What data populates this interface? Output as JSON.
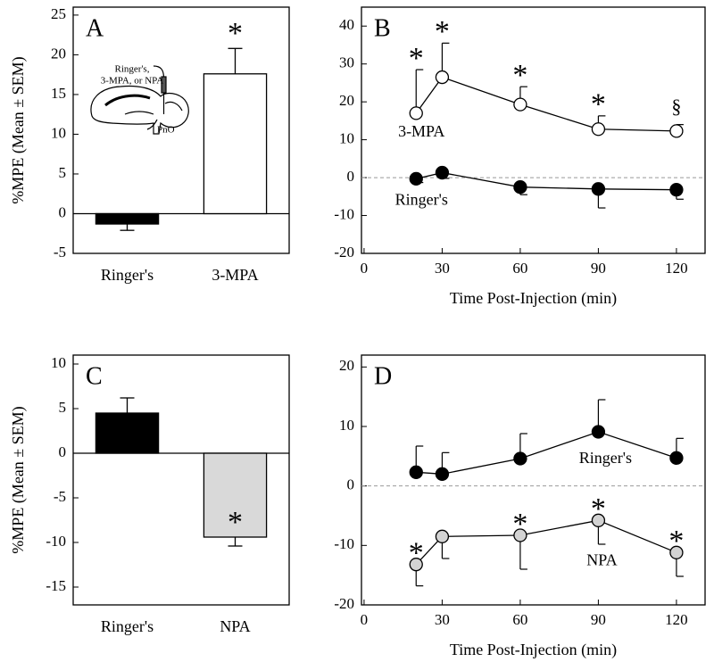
{
  "chart_data": [
    {
      "type": "bar",
      "title": "A",
      "y_label": "%MPE (Mean ± SEM)",
      "categories": [
        "Ringer's",
        "3-MPA"
      ],
      "values": [
        -1.3,
        17.6
      ],
      "errors": [
        0.8,
        3.2
      ],
      "colors": [
        "#000000",
        "#ffffff"
      ],
      "markers": [
        null,
        "*"
      ],
      "ylim": [
        -5,
        26
      ],
      "yticks": [
        -5,
        0,
        5,
        10,
        15,
        20,
        25
      ],
      "zero_line": "solid",
      "inset": {
        "labels": [
          "Ringer's,",
          "3-MPA, or NPA",
          "PnO"
        ]
      }
    },
    {
      "type": "line",
      "title": "B",
      "x_label": "Time Post-Injection (min)",
      "x": [
        20,
        30,
        60,
        90,
        120
      ],
      "xlim": [
        -1,
        131
      ],
      "xticks": [
        0,
        30,
        60,
        90,
        120
      ],
      "ylim": [
        -20,
        45
      ],
      "yticks": [
        -20,
        -10,
        0,
        10,
        20,
        30,
        40
      ],
      "zero_line": "dashed",
      "series": [
        {
          "name": "3-MPA",
          "color": "#ffffff",
          "values": [
            17,
            26.5,
            19.3,
            12.8,
            12.3
          ],
          "errors": [
            11.5,
            9,
            4.7,
            3.5,
            1.7
          ],
          "error_direction": "up",
          "markers": [
            "*",
            "*",
            "*",
            "*",
            "§"
          ]
        },
        {
          "name": "Ringer's",
          "color": "#000000",
          "values": [
            -0.3,
            1.3,
            -2.5,
            -3,
            -3.2
          ],
          "errors": [
            1,
            1.5,
            2,
            5,
            2.5
          ],
          "error_direction": "down"
        }
      ]
    },
    {
      "type": "bar",
      "title": "C",
      "y_label": "%MPE (Mean ± SEM)",
      "categories": [
        "Ringer's",
        "NPA"
      ],
      "values": [
        4.5,
        -9.4
      ],
      "errors": [
        1.7,
        1.0
      ],
      "colors": [
        "#000000",
        "#d9d9d9"
      ],
      "markers": [
        null,
        "*"
      ],
      "ylim": [
        -17,
        11
      ],
      "yticks": [
        -15,
        -10,
        -5,
        0,
        5,
        10
      ],
      "zero_line": "solid"
    },
    {
      "type": "line",
      "title": "D",
      "x_label": "Time Post-Injection (min)",
      "x": [
        20,
        30,
        60,
        90,
        120
      ],
      "xlim": [
        -1,
        131
      ],
      "xticks": [
        0,
        30,
        60,
        90,
        120
      ],
      "ylim": [
        -20,
        22
      ],
      "yticks": [
        -20,
        -10,
        0,
        10,
        20
      ],
      "zero_line": "dashed",
      "series": [
        {
          "name": "Ringer's",
          "color": "#000000",
          "values": [
            2.3,
            2,
            4.6,
            9.1,
            4.7
          ],
          "errors": [
            4.4,
            3.6,
            4.2,
            5.4,
            3.3
          ],
          "error_direction": "up"
        },
        {
          "name": "NPA",
          "color": "#d3d3d3",
          "values": [
            -13.2,
            -8.5,
            -8.3,
            -5.8,
            -11.2
          ],
          "errors": [
            3.6,
            3.7,
            5.7,
            4,
            4
          ],
          "error_direction": "down",
          "markers": [
            "*",
            null,
            "*",
            "*",
            "*"
          ]
        }
      ]
    }
  ]
}
